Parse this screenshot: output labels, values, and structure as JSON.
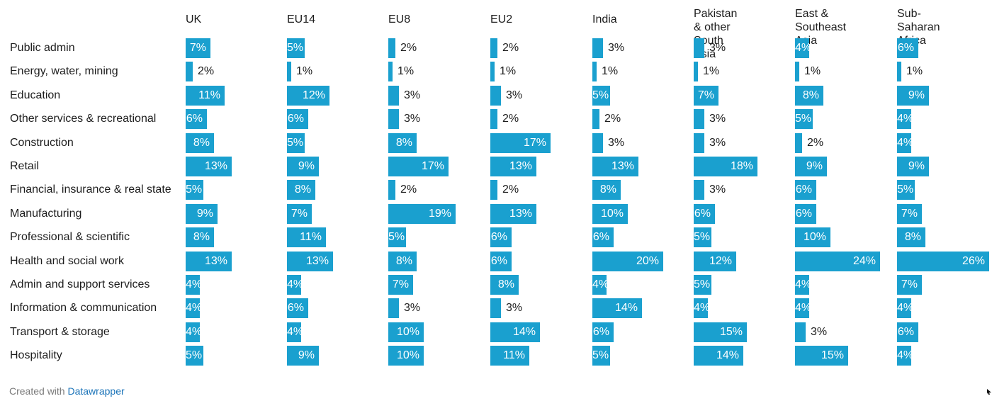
{
  "chart_data": {
    "type": "bar",
    "orientation": "horizontal",
    "layout": "small-multiples",
    "bar_color": "#1aa0cf",
    "categories": [
      "Public admin",
      "Energy, water, mining",
      "Education",
      "Other services & recreational",
      "Construction",
      "Retail",
      "Financial, insurance & real state",
      "Manufacturing",
      "Professional & scientific",
      "Health and social work",
      "Admin and support services",
      "Information & communication",
      "Transport & storage",
      "Hospitality"
    ],
    "value_suffix": "%",
    "series": [
      {
        "name": "UK",
        "values": [
          7,
          2,
          11,
          6,
          8,
          13,
          5,
          9,
          8,
          13,
          4,
          4,
          4,
          5
        ]
      },
      {
        "name": "EU14",
        "values": [
          5,
          1,
          12,
          6,
          5,
          9,
          8,
          7,
          11,
          13,
          4,
          6,
          4,
          9
        ]
      },
      {
        "name": "EU8",
        "values": [
          2,
          1,
          3,
          3,
          8,
          17,
          2,
          19,
          5,
          8,
          7,
          3,
          10,
          10
        ]
      },
      {
        "name": "EU2",
        "values": [
          2,
          1,
          3,
          2,
          17,
          13,
          2,
          13,
          6,
          6,
          8,
          3,
          14,
          11
        ]
      },
      {
        "name": "India",
        "values": [
          3,
          1,
          5,
          2,
          3,
          13,
          8,
          10,
          6,
          20,
          4,
          14,
          6,
          5
        ]
      },
      {
        "name": "Pakistan & other\nSouth Asia",
        "values": [
          3,
          1,
          7,
          3,
          3,
          18,
          3,
          6,
          5,
          12,
          5,
          4,
          15,
          14
        ]
      },
      {
        "name": "East & Southeast\nAsia",
        "values": [
          4,
          1,
          8,
          5,
          2,
          9,
          6,
          6,
          10,
          24,
          4,
          4,
          3,
          15
        ]
      },
      {
        "name": "Sub-Saharan\nAfrica",
        "values": [
          6,
          1,
          9,
          4,
          4,
          9,
          5,
          7,
          8,
          26,
          7,
          4,
          6,
          4
        ]
      }
    ]
  },
  "footer": {
    "prefix": "Created with ",
    "link": "Datawrapper"
  }
}
